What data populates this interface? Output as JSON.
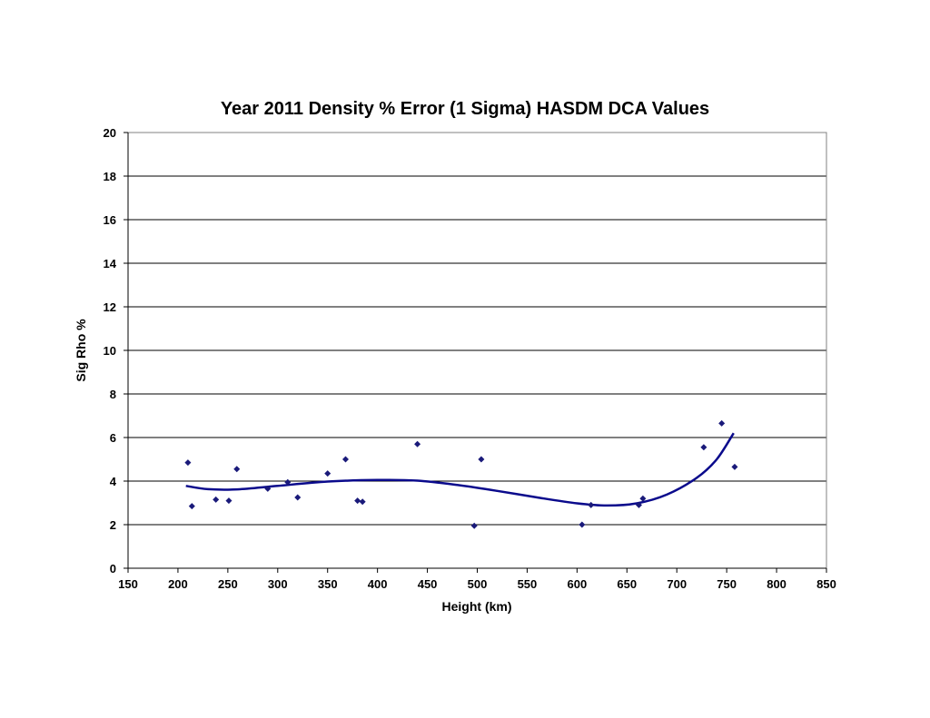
{
  "chart_data": {
    "type": "scatter",
    "title": "Year 2011 Density % Error (1 Sigma) HASDM DCA Values",
    "xlabel": "Height (km)",
    "ylabel": "Sig Rho %",
    "xlim": [
      150,
      850
    ],
    "ylim": [
      0,
      20
    ],
    "x_ticks": [
      "150",
      "200",
      "250",
      "300",
      "350",
      "400",
      "450",
      "500",
      "550",
      "600",
      "650",
      "700",
      "750",
      "800",
      "850"
    ],
    "y_ticks": [
      "0",
      "2",
      "4",
      "6",
      "8",
      "10",
      "12",
      "14",
      "16",
      "18",
      "20"
    ],
    "grid": "horizontal",
    "legend": "none",
    "colors": {
      "points": "#1a1a7a",
      "trendline": "#0a0a8c",
      "grid": "#000000"
    },
    "series": [
      {
        "points": [
          [
            210,
            4.85
          ],
          [
            214,
            2.85
          ],
          [
            238,
            3.15
          ],
          [
            251,
            3.1
          ],
          [
            259,
            4.55
          ],
          [
            290,
            3.65
          ],
          [
            310,
            3.95
          ],
          [
            320,
            3.25
          ],
          [
            350,
            4.35
          ],
          [
            368,
            5.0
          ],
          [
            380,
            3.1
          ],
          [
            385,
            3.05
          ],
          [
            440,
            5.7
          ],
          [
            497,
            1.95
          ],
          [
            504,
            5.0
          ],
          [
            605,
            2.0
          ],
          [
            614,
            2.9
          ],
          [
            662,
            2.9
          ],
          [
            666,
            3.2
          ],
          [
            727,
            5.55
          ],
          [
            745,
            6.65
          ],
          [
            758,
            4.65
          ]
        ]
      }
    ],
    "trendline": {
      "type": "polynomial",
      "points": [
        [
          208,
          3.78
        ],
        [
          230,
          3.63
        ],
        [
          260,
          3.62
        ],
        [
          300,
          3.78
        ],
        [
          350,
          3.98
        ],
        [
          400,
          4.05
        ],
        [
          440,
          4.02
        ],
        [
          480,
          3.82
        ],
        [
          520,
          3.55
        ],
        [
          560,
          3.25
        ],
        [
          600,
          2.98
        ],
        [
          630,
          2.88
        ],
        [
          660,
          2.98
        ],
        [
          690,
          3.38
        ],
        [
          720,
          4.15
        ],
        [
          740,
          5.0
        ],
        [
          757,
          6.2
        ]
      ]
    }
  }
}
